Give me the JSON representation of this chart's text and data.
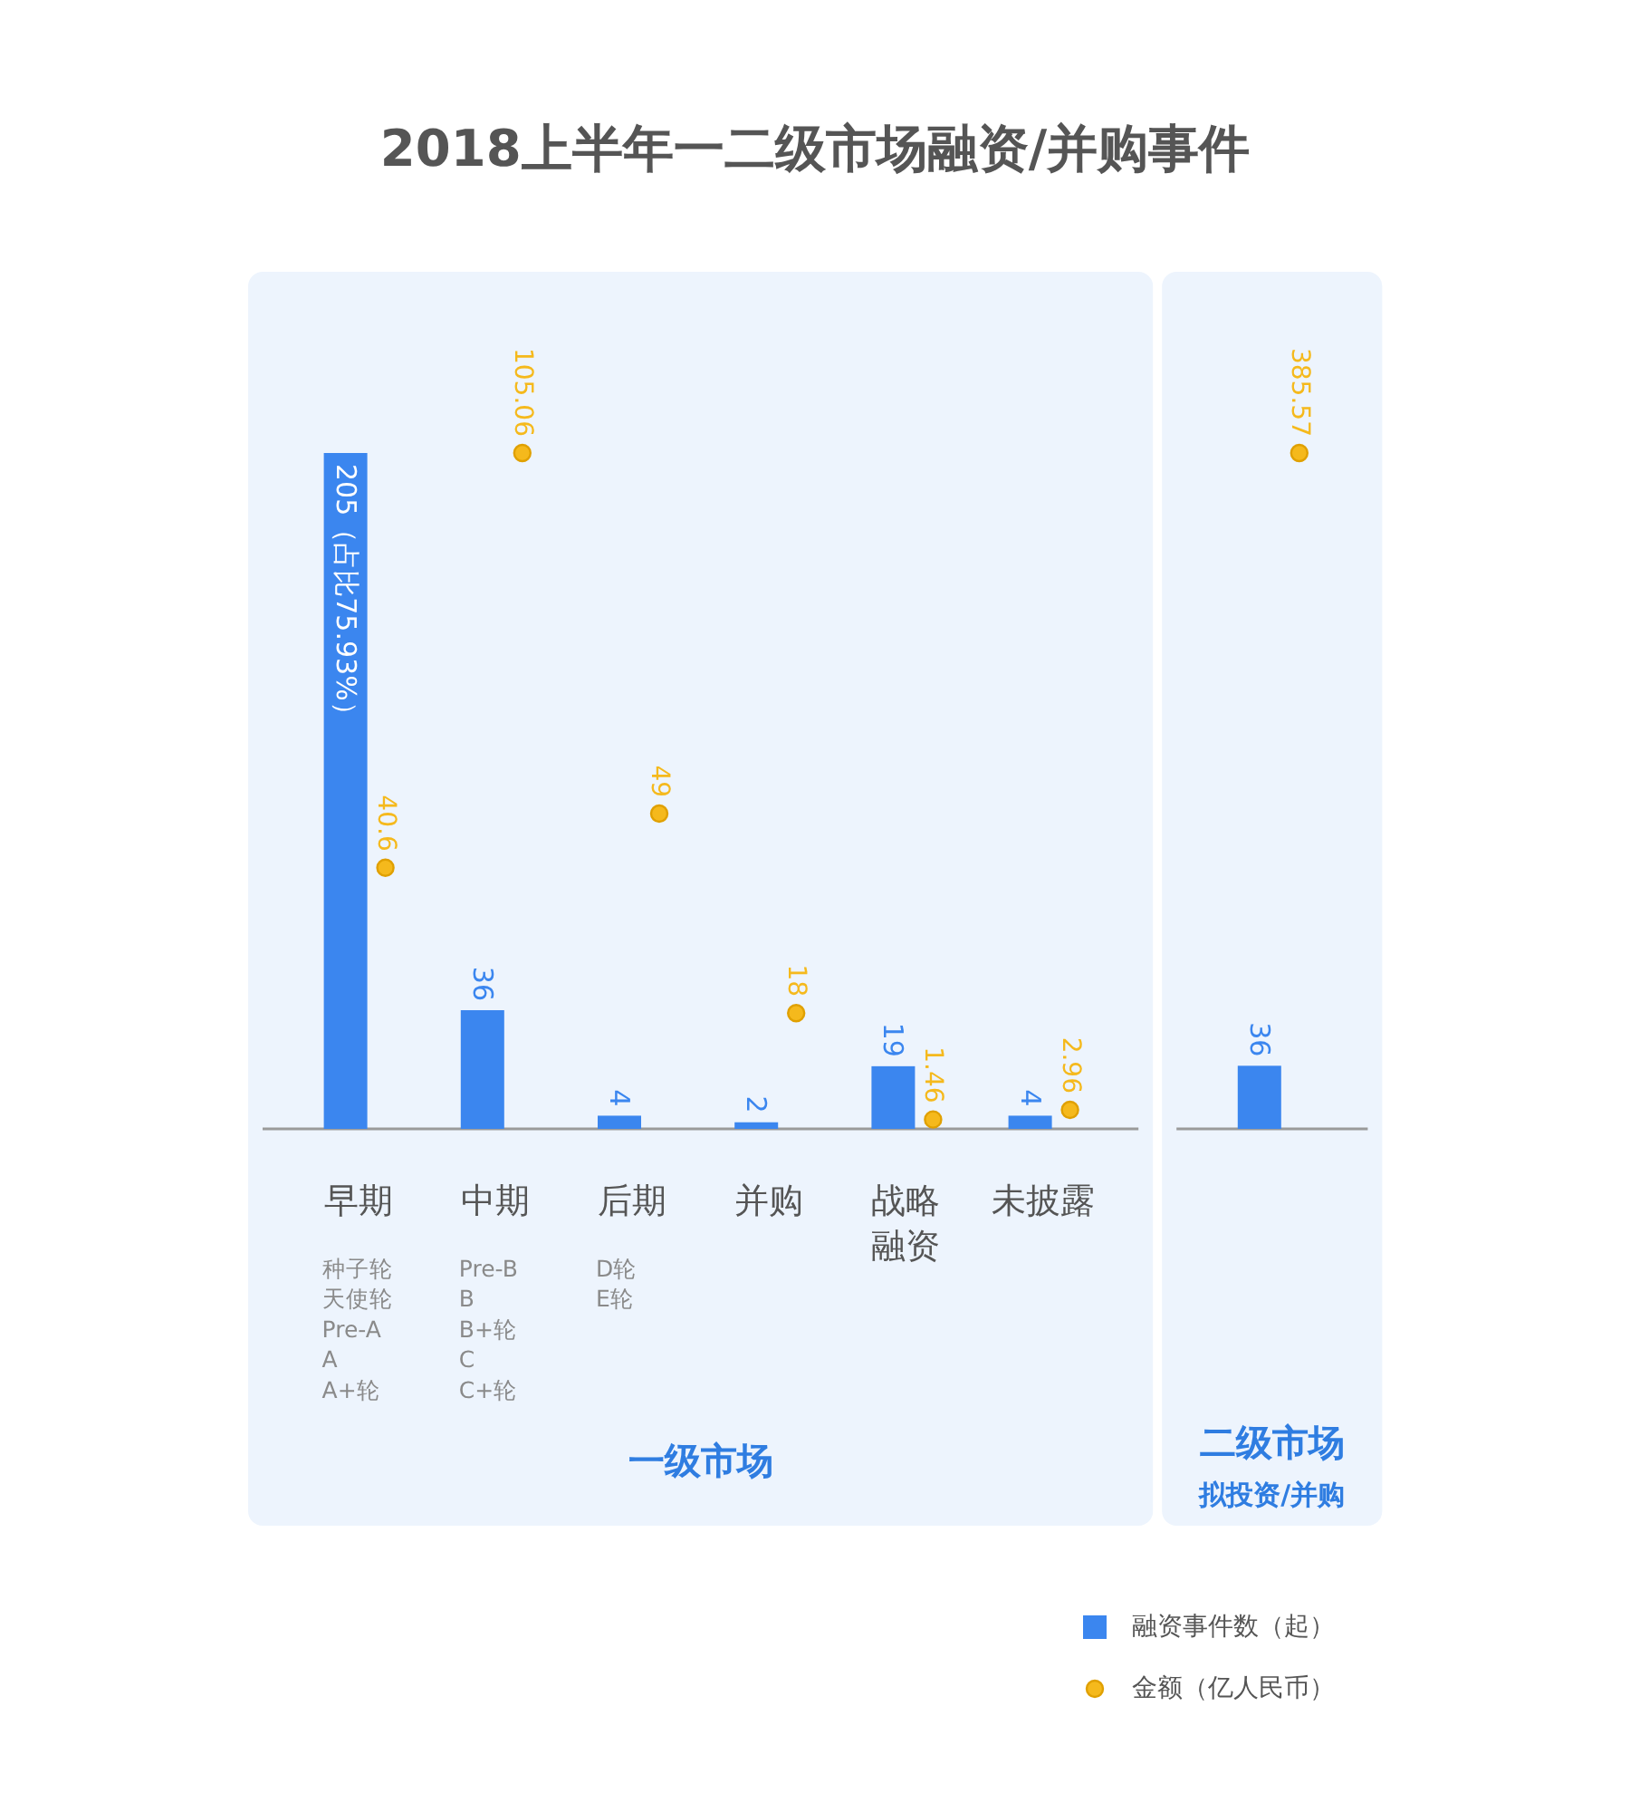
{
  "chart_data": [
    {
      "type": "bar",
      "title": "2018上半年一二级市场融资/并购事件",
      "xlabel": "一级市场",
      "categories": [
        "早期",
        "中期",
        "后期",
        "并购",
        "战略融资",
        "未披露"
      ],
      "series": [
        {
          "name": "融资事件数（起）",
          "color": "#3b86ef",
          "values": [
            205,
            36,
            4,
            2,
            19,
            4
          ],
          "value_labels": [
            "205（占比75.93%）",
            "36",
            "4",
            "2",
            "19",
            "4"
          ]
        },
        {
          "name": "金额（亿人民币）",
          "type": "scatter",
          "axis": "y2",
          "color": "#f5b91c",
          "values": [
            40.6,
            105.06,
            49,
            18,
            1.46,
            2.96
          ],
          "value_labels": [
            "40.6",
            "105.06",
            "49",
            "18",
            "1.46",
            "2.96"
          ]
        }
      ],
      "annotations": [
        "种子轮",
        "天使轮",
        "Pre-A",
        "A",
        "A+轮",
        "Pre-B",
        "B",
        "B+轮",
        "C",
        "C+轮",
        "D轮",
        "E轮"
      ],
      "tick_labels": "x",
      "legend": "bottom right",
      "marker": "circle"
    },
    {
      "type": "bar",
      "xlabel": "二级市场",
      "categories": [
        "拟投资/并购"
      ],
      "series": [
        {
          "color": "#3b86ef",
          "values": [
            36
          ],
          "value_labels": [
            "36"
          ]
        },
        {
          "type": "scatter",
          "color": "#f5b91c",
          "values": [
            385.57
          ],
          "value_labels": [
            "385.57"
          ]
        }
      ],
      "tick_labels": "x",
      "marker": "circle"
    }
  ]
}
